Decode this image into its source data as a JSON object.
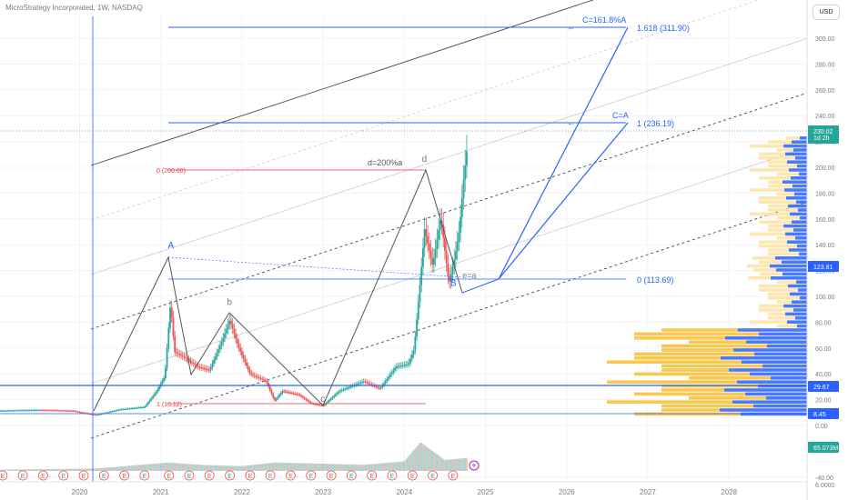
{
  "header": {
    "symbol_title": "MicroStrategy Incorporated, 1W, NASDAQ",
    "currency": "USD"
  },
  "chart_data": {
    "type": "candlestick",
    "title": "MicroStrategy Incorporated, 1W, NASDAQ",
    "x_ticks": [
      "2020",
      "2021",
      "2022",
      "2023",
      "2024",
      "2025",
      "2026",
      "2027",
      "2028"
    ],
    "x_range": [
      2019.0,
      2028.9
    ],
    "y_ticks": [
      -40,
      0,
      20,
      40,
      60,
      80,
      100,
      120,
      140,
      160,
      180,
      200,
      220,
      240,
      260,
      280,
      300,
      320,
      340,
      360
    ],
    "y_range": [
      -48,
      368
    ],
    "y_ticks_extra": [
      "6.0000"
    ],
    "price_path": [
      [
        2019.0,
        12
      ],
      [
        2019.5,
        12.5
      ],
      [
        2019.9,
        12
      ],
      [
        2020.2,
        8.45
      ],
      [
        2020.5,
        13
      ],
      [
        2020.8,
        15
      ],
      [
        2020.95,
        28
      ],
      [
        2021.05,
        40
      ],
      [
        2021.12,
        100
      ],
      [
        2021.17,
        60
      ],
      [
        2021.3,
        55
      ],
      [
        2021.45,
        48
      ],
      [
        2021.6,
        45
      ],
      [
        2021.75,
        68
      ],
      [
        2021.85,
        86
      ],
      [
        2021.95,
        65
      ],
      [
        2022.1,
        42
      ],
      [
        2022.3,
        36
      ],
      [
        2022.4,
        20
      ],
      [
        2022.5,
        28
      ],
      [
        2022.7,
        25
      ],
      [
        2022.85,
        18
      ],
      [
        2023.0,
        16.12
      ],
      [
        2023.2,
        28
      ],
      [
        2023.5,
        36
      ],
      [
        2023.7,
        30
      ],
      [
        2023.9,
        48
      ],
      [
        2024.05,
        50
      ],
      [
        2024.12,
        62
      ],
      [
        2024.2,
        120
      ],
      [
        2024.25,
        160
      ],
      [
        2024.35,
        130
      ],
      [
        2024.45,
        170
      ],
      [
        2024.55,
        115
      ],
      [
        2024.63,
        140
      ],
      [
        2024.68,
        160
      ],
      [
        2024.73,
        200
      ],
      [
        2024.78,
        230.02
      ]
    ],
    "volume_path": [
      [
        2019.0,
        2
      ],
      [
        2020.2,
        4
      ],
      [
        2021.1,
        14
      ],
      [
        2021.5,
        10
      ],
      [
        2022.0,
        8
      ],
      [
        2022.4,
        14
      ],
      [
        2023.0,
        12
      ],
      [
        2023.5,
        10
      ],
      [
        2024.0,
        16
      ],
      [
        2024.2,
        48
      ],
      [
        2024.5,
        18
      ],
      [
        2024.78,
        22
      ]
    ],
    "earnings_markers": [
      "E",
      "E",
      "E",
      "E",
      "E",
      "E",
      "E",
      "E",
      "E",
      "E",
      "E",
      "E",
      "E",
      "E",
      "E",
      "E",
      "E",
      "E",
      "E",
      "E",
      "E",
      "E",
      "E"
    ],
    "earnings_x": [
      2019.05,
      2019.3,
      2019.55,
      2019.8,
      2020.05,
      2020.3,
      2020.55,
      2020.8,
      2021.1,
      2021.35,
      2021.6,
      2021.85,
      2022.1,
      2022.35,
      2022.6,
      2022.85,
      2023.1,
      2023.35,
      2023.6,
      2023.85,
      2024.1,
      2024.35,
      2024.6
    ],
    "waves": [
      {
        "label": "A",
        "x": 2021.12,
        "y": 133,
        "color": "#2962ff"
      },
      {
        "label": "a",
        "x": 2021.35,
        "y": 44,
        "color": "#787b86"
      },
      {
        "label": "b",
        "x": 2021.85,
        "y": 89,
        "color": "#787b86"
      },
      {
        "label": "c",
        "x": 2023.0,
        "y": 14,
        "color": "#787b86"
      },
      {
        "label": "d",
        "x": 2024.25,
        "y": 200,
        "color": "#787b86"
      },
      {
        "label": "B",
        "x": 2024.6,
        "y": 104,
        "color": "#2962ff"
      },
      {
        "label": "e=a",
        "x": 2024.75,
        "y": 110,
        "color": "#787b86"
      }
    ],
    "annotations": {
      "d_pct": "d=200%a",
      "fib_0_red": "0 (200.00)",
      "fib_1_red": "1 (16.12)",
      "target_161": "C=161.8%A",
      "target_161_level": "1.618 (311.90)",
      "target_100": "C=A",
      "target_100_level": "1 (236.19)",
      "target_0_level": "0 (113.69)"
    },
    "price_badges": {
      "last": "230.02",
      "countdown": "1d 2h",
      "level_a": "123.81",
      "level_b": "29.67",
      "level_c": "8.45",
      "volume": "65.073M"
    },
    "colors": {
      "up": "#26a69a",
      "down": "#ef5350",
      "fib": "#2962ff",
      "red_fib": "#f23645",
      "vp_blue": "#2962ff",
      "vp_yellow": "#f9c23c"
    }
  }
}
